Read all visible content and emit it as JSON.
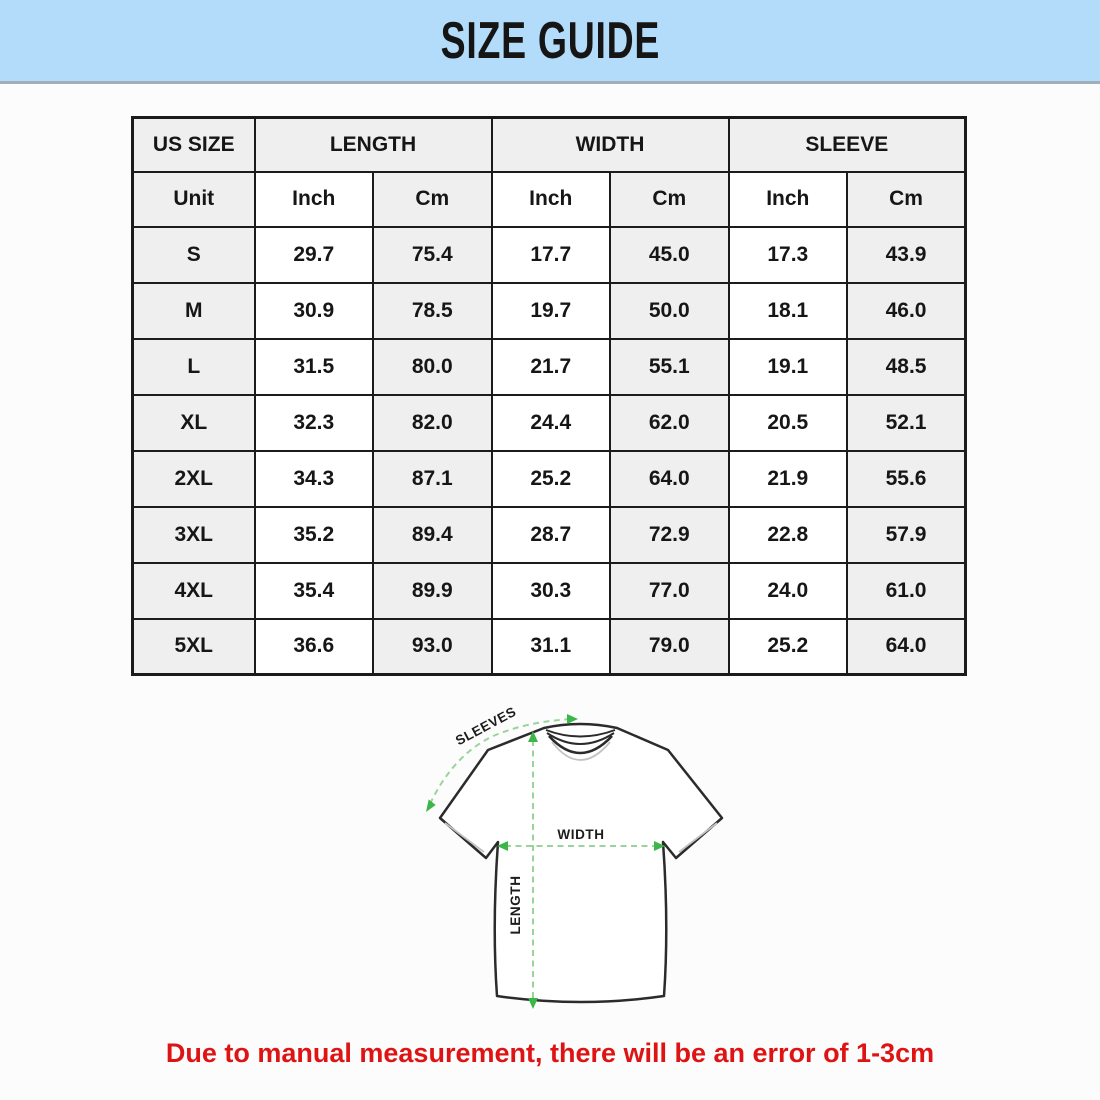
{
  "title": "SIZE GUIDE",
  "table": {
    "group_headers": [
      "US SIZE",
      "LENGTH",
      "WIDTH",
      "SLEEVE"
    ],
    "unit_row": [
      "Unit",
      "Inch",
      "Cm",
      "Inch",
      "Cm",
      "Inch",
      "Cm"
    ],
    "rows": [
      {
        "size": "S",
        "values": [
          "29.7",
          "75.4",
          "17.7",
          "45.0",
          "17.3",
          "43.9"
        ]
      },
      {
        "size": "M",
        "values": [
          "30.9",
          "78.5",
          "19.7",
          "50.0",
          "18.1",
          "46.0"
        ]
      },
      {
        "size": "L",
        "values": [
          "31.5",
          "80.0",
          "21.7",
          "55.1",
          "19.1",
          "48.5"
        ]
      },
      {
        "size": "XL",
        "values": [
          "32.3",
          "82.0",
          "24.4",
          "62.0",
          "20.5",
          "52.1"
        ]
      },
      {
        "size": "2XL",
        "values": [
          "34.3",
          "87.1",
          "25.2",
          "64.0",
          "21.9",
          "55.6"
        ]
      },
      {
        "size": "3XL",
        "values": [
          "35.2",
          "89.4",
          "28.7",
          "72.9",
          "22.8",
          "57.9"
        ]
      },
      {
        "size": "4XL",
        "values": [
          "35.4",
          "89.9",
          "30.3",
          "77.0",
          "24.0",
          "61.0"
        ]
      },
      {
        "size": "5XL",
        "values": [
          "36.6",
          "93.0",
          "31.1",
          "79.0",
          "25.2",
          "64.0"
        ]
      }
    ]
  },
  "diagram": {
    "sleeves_label": "SLEEVES",
    "width_label": "WIDTH",
    "length_label": "LENGTH"
  },
  "note": "Due to manual measurement, there will be an error of 1-3cm",
  "colors": {
    "banner_bg": "#b3dcfa",
    "table_shaded_cell": "#efefef",
    "note_red": "#de1414",
    "arrow_green": "#3cb54a",
    "dash_green": "#9bd49b"
  }
}
